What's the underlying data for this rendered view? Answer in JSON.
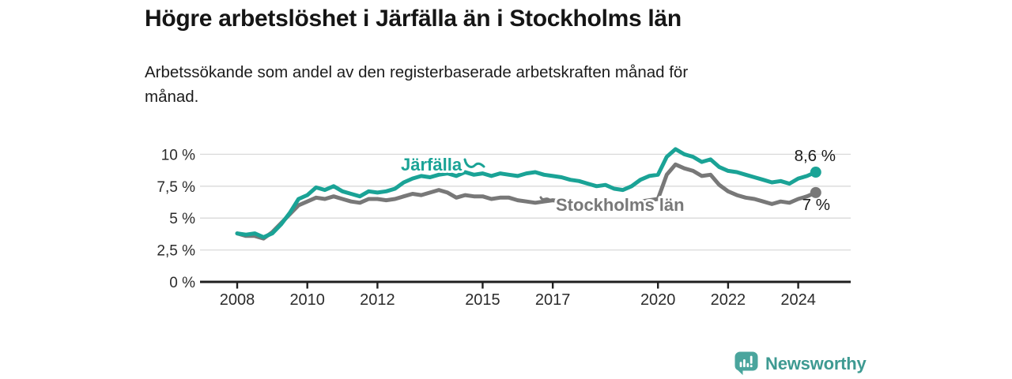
{
  "header": {
    "title": "Högre arbetslöshet i Järfälla än i Stockholms län",
    "subtitle_line1": "Arbetssökande som andel av den registerbaserade arbetskraften månad för",
    "subtitle_line2": "månad."
  },
  "footer": {
    "brand_name": "Newsworthy",
    "brand_color": "#3e9a92",
    "logo_icon": "newsworthy-bar-chart-bubble-icon"
  },
  "chart_data": {
    "type": "line",
    "title": "Högre arbetslöshet i Järfälla än i Stockholms län",
    "ylabel": "",
    "xlabel": "",
    "grid": "horizontal",
    "grid_color": "#d9d9d9",
    "axis_color": "#1f1f1f",
    "tick_label_color": "#2b2b2b",
    "x_axis": {
      "ticks": [
        2008,
        2010,
        2012,
        2015,
        2017,
        2020,
        2022,
        2024
      ],
      "labels": [
        "2008",
        "2010",
        "2012",
        "2015",
        "2017",
        "2020",
        "2022",
        "2024"
      ],
      "range": [
        2007.0,
        2025.5
      ]
    },
    "y_axis": {
      "ticks": [
        0,
        2.5,
        5,
        7.5,
        10
      ],
      "labels": [
        "0 %",
        "2,5 %",
        "5 %",
        "7,5 %",
        "10 %"
      ],
      "range": [
        0,
        10.5
      ],
      "unit": "%"
    },
    "x": [
      2008,
      2008.25,
      2008.5,
      2008.75,
      2009,
      2009.25,
      2009.5,
      2009.75,
      2010,
      2010.25,
      2010.5,
      2010.75,
      2011,
      2011.25,
      2011.5,
      2011.75,
      2012,
      2012.25,
      2012.5,
      2012.75,
      2013,
      2013.25,
      2013.5,
      2013.75,
      2014,
      2014.25,
      2014.5,
      2014.75,
      2015,
      2015.25,
      2015.5,
      2015.75,
      2016,
      2016.25,
      2016.5,
      2016.75,
      2017,
      2017.25,
      2017.5,
      2017.75,
      2018,
      2018.25,
      2018.5,
      2018.75,
      2019,
      2019.25,
      2019.5,
      2019.75,
      2020,
      2020.25,
      2020.5,
      2020.75,
      2021,
      2021.25,
      2021.5,
      2021.75,
      2022,
      2022.25,
      2022.5,
      2022.75,
      2023,
      2023.25,
      2023.5,
      2023.75,
      2024,
      2024.25,
      2024.5
    ],
    "series": [
      {
        "name": "Järfälla",
        "color": "#1aa396",
        "end_label": "8,6 %",
        "end_value": 8.6,
        "values": [
          3.8,
          3.7,
          3.8,
          3.5,
          3.8,
          4.5,
          5.4,
          6.5,
          6.8,
          7.4,
          7.2,
          7.5,
          7.1,
          6.9,
          6.7,
          7.1,
          7.0,
          7.1,
          7.3,
          7.8,
          8.1,
          8.3,
          8.2,
          8.4,
          8.5,
          8.3,
          8.6,
          8.4,
          8.5,
          8.3,
          8.5,
          8.4,
          8.3,
          8.5,
          8.6,
          8.4,
          8.3,
          8.2,
          8.0,
          7.9,
          7.7,
          7.5,
          7.6,
          7.3,
          7.2,
          7.5,
          8.0,
          8.3,
          8.4,
          9.8,
          10.4,
          10.0,
          9.8,
          9.4,
          9.6,
          9.0,
          8.7,
          8.6,
          8.4,
          8.2,
          8.0,
          7.8,
          7.9,
          7.7,
          8.1,
          8.3,
          8.6
        ]
      },
      {
        "name": "Stockholms län",
        "color": "#787878",
        "end_label": "7 %",
        "end_value": 7.0,
        "values": [
          3.8,
          3.6,
          3.6,
          3.4,
          3.9,
          4.6,
          5.3,
          6.0,
          6.3,
          6.6,
          6.5,
          6.7,
          6.5,
          6.3,
          6.2,
          6.5,
          6.5,
          6.4,
          6.5,
          6.7,
          6.9,
          6.8,
          7.0,
          7.2,
          7.0,
          6.6,
          6.8,
          6.7,
          6.7,
          6.5,
          6.6,
          6.6,
          6.4,
          6.3,
          6.2,
          6.3,
          6.4,
          6.3,
          6.2,
          6.1,
          6.0,
          5.9,
          6.0,
          5.9,
          6.0,
          6.1,
          6.3,
          6.4,
          6.5,
          8.4,
          9.2,
          8.9,
          8.7,
          8.3,
          8.4,
          7.6,
          7.1,
          6.8,
          6.6,
          6.5,
          6.3,
          6.1,
          6.3,
          6.2,
          6.5,
          6.7,
          7.0
        ]
      }
    ]
  }
}
